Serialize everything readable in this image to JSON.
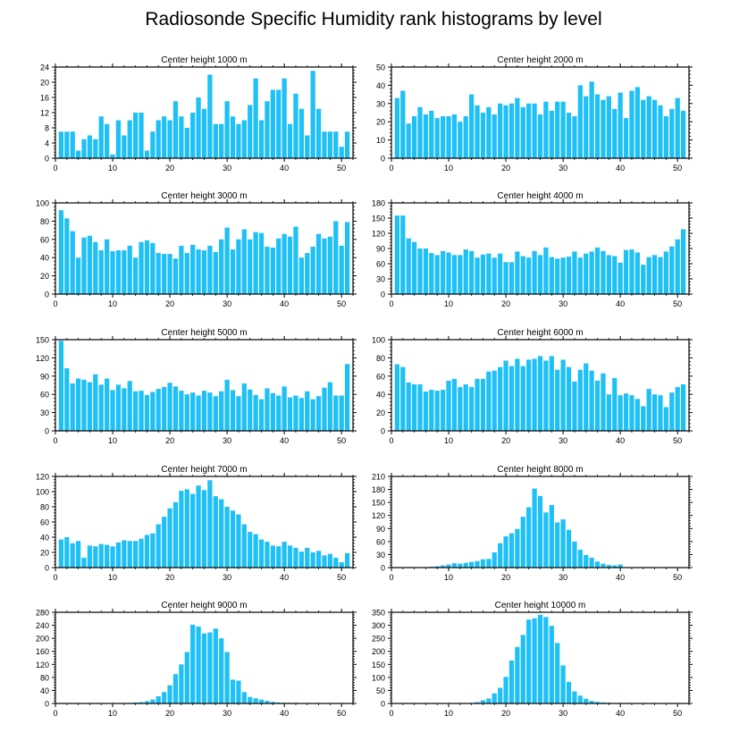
{
  "title": "Radiosonde Specific Humidity rank histograms by level",
  "colors": {
    "bar": "#1ec0f5",
    "axis": "#000000",
    "background": "#ffffff"
  },
  "chart_data": [
    {
      "type": "bar",
      "title": "Center height 1000 m",
      "xlabel": "",
      "ylabel": "",
      "x": [
        1,
        2,
        3,
        4,
        5,
        6,
        7,
        8,
        9,
        10,
        11,
        12,
        13,
        14,
        15,
        16,
        17,
        18,
        19,
        20,
        21,
        22,
        23,
        24,
        25,
        26,
        27,
        28,
        29,
        30,
        31,
        32,
        33,
        34,
        35,
        36,
        37,
        38,
        39,
        40,
        41,
        42,
        43,
        44,
        45,
        46,
        47,
        48,
        49,
        50,
        51
      ],
      "values": [
        7,
        7,
        7,
        2,
        5,
        6,
        5,
        11,
        9,
        1,
        10,
        6,
        10,
        12,
        12,
        2,
        7,
        10,
        11,
        10,
        15,
        11,
        8,
        12,
        16,
        13,
        22,
        9,
        9,
        15,
        11,
        9,
        10,
        14,
        21,
        10,
        15,
        18,
        18,
        21,
        9,
        17,
        13,
        6,
        23,
        13,
        7,
        7,
        7,
        3,
        7
      ],
      "xlim": [
        0,
        52
      ],
      "ylim": [
        0,
        24
      ],
      "xticks": [
        0,
        10,
        20,
        30,
        40,
        50
      ],
      "yticks": [
        0,
        4,
        8,
        12,
        16,
        20,
        24
      ]
    },
    {
      "type": "bar",
      "title": "Center height 2000 m",
      "xlabel": "",
      "ylabel": "",
      "x": [
        1,
        2,
        3,
        4,
        5,
        6,
        7,
        8,
        9,
        10,
        11,
        12,
        13,
        14,
        15,
        16,
        17,
        18,
        19,
        20,
        21,
        22,
        23,
        24,
        25,
        26,
        27,
        28,
        29,
        30,
        31,
        32,
        33,
        34,
        35,
        36,
        37,
        38,
        39,
        40,
        41,
        42,
        43,
        44,
        45,
        46,
        47,
        48,
        49,
        50,
        51
      ],
      "values": [
        33,
        37,
        19,
        23,
        28,
        24,
        26,
        22,
        23,
        23,
        24,
        20,
        23,
        35,
        29,
        25,
        28,
        24,
        30,
        29,
        30,
        33,
        28,
        30,
        30,
        24,
        31,
        26,
        31,
        31,
        25,
        23,
        40,
        34,
        42,
        35,
        32,
        34,
        27,
        36,
        22,
        37,
        39,
        32,
        34,
        32,
        29,
        23,
        27,
        33,
        26
      ],
      "xlim": [
        0,
        52
      ],
      "ylim": [
        0,
        50
      ],
      "xticks": [
        0,
        10,
        20,
        30,
        40,
        50
      ],
      "yticks": [
        0,
        10,
        20,
        30,
        40,
        50
      ]
    },
    {
      "type": "bar",
      "title": "Center height 3000 m",
      "xlabel": "",
      "ylabel": "",
      "x": [
        1,
        2,
        3,
        4,
        5,
        6,
        7,
        8,
        9,
        10,
        11,
        12,
        13,
        14,
        15,
        16,
        17,
        18,
        19,
        20,
        21,
        22,
        23,
        24,
        25,
        26,
        27,
        28,
        29,
        30,
        31,
        32,
        33,
        34,
        35,
        36,
        37,
        38,
        39,
        40,
        41,
        42,
        43,
        44,
        45,
        46,
        47,
        48,
        49,
        50,
        51
      ],
      "values": [
        92,
        83,
        69,
        40,
        62,
        64,
        57,
        48,
        60,
        47,
        48,
        48,
        53,
        40,
        57,
        59,
        56,
        45,
        44,
        44,
        39,
        53,
        45,
        54,
        49,
        48,
        53,
        46,
        60,
        73,
        49,
        60,
        71,
        60,
        68,
        67,
        52,
        51,
        61,
        66,
        63,
        74,
        40,
        45,
        52,
        66,
        61,
        63,
        80,
        53,
        79
      ],
      "xlim": [
        0,
        52
      ],
      "ylim": [
        0,
        100
      ],
      "xticks": [
        0,
        10,
        20,
        30,
        40,
        50
      ],
      "yticks": [
        0,
        20,
        40,
        60,
        80,
        100
      ]
    },
    {
      "type": "bar",
      "title": "Center height 4000 m",
      "xlabel": "",
      "ylabel": "",
      "x": [
        1,
        2,
        3,
        4,
        5,
        6,
        7,
        8,
        9,
        10,
        11,
        12,
        13,
        14,
        15,
        16,
        17,
        18,
        19,
        20,
        21,
        22,
        23,
        24,
        25,
        26,
        27,
        28,
        29,
        30,
        31,
        32,
        33,
        34,
        35,
        36,
        37,
        38,
        39,
        40,
        41,
        42,
        43,
        44,
        45,
        46,
        47,
        48,
        49,
        50,
        51
      ],
      "values": [
        155,
        155,
        110,
        103,
        90,
        90,
        81,
        77,
        85,
        82,
        77,
        77,
        88,
        85,
        72,
        78,
        80,
        72,
        80,
        63,
        63,
        84,
        75,
        72,
        85,
        77,
        92,
        73,
        70,
        72,
        74,
        84,
        72,
        80,
        84,
        92,
        85,
        77,
        75,
        62,
        87,
        88,
        82,
        58,
        73,
        77,
        73,
        84,
        94,
        108,
        128
      ],
      "xlim": [
        0,
        52
      ],
      "ylim": [
        0,
        180
      ],
      "xticks": [
        0,
        10,
        20,
        30,
        40,
        50
      ],
      "yticks": [
        0,
        30,
        60,
        90,
        120,
        150,
        180
      ]
    },
    {
      "type": "bar",
      "title": "Center height 5000 m",
      "xlabel": "",
      "ylabel": "",
      "x": [
        1,
        2,
        3,
        4,
        5,
        6,
        7,
        8,
        9,
        10,
        11,
        12,
        13,
        14,
        15,
        16,
        17,
        18,
        19,
        20,
        21,
        22,
        23,
        24,
        25,
        26,
        27,
        28,
        29,
        30,
        31,
        32,
        33,
        34,
        35,
        36,
        37,
        38,
        39,
        40,
        41,
        42,
        43,
        44,
        45,
        46,
        47,
        48,
        49,
        50,
        51
      ],
      "values": [
        148,
        103,
        78,
        86,
        84,
        80,
        93,
        76,
        86,
        67,
        76,
        70,
        82,
        65,
        66,
        59,
        64,
        69,
        72,
        79,
        73,
        66,
        60,
        63,
        58,
        66,
        63,
        57,
        65,
        84,
        67,
        57,
        78,
        68,
        59,
        52,
        70,
        62,
        58,
        73,
        55,
        58,
        54,
        65,
        52,
        57,
        71,
        80,
        58,
        58,
        110
      ],
      "xlim": [
        0,
        52
      ],
      "ylim": [
        0,
        150
      ],
      "xticks": [
        0,
        10,
        20,
        30,
        40,
        50
      ],
      "yticks": [
        0,
        30,
        60,
        90,
        120,
        150
      ]
    },
    {
      "type": "bar",
      "title": "Center height 6000 m",
      "xlabel": "",
      "ylabel": "",
      "x": [
        1,
        2,
        3,
        4,
        5,
        6,
        7,
        8,
        9,
        10,
        11,
        12,
        13,
        14,
        15,
        16,
        17,
        18,
        19,
        20,
        21,
        22,
        23,
        24,
        25,
        26,
        27,
        28,
        29,
        30,
        31,
        32,
        33,
        34,
        35,
        36,
        37,
        38,
        39,
        40,
        41,
        42,
        43,
        44,
        45,
        46,
        47,
        48,
        49,
        50,
        51
      ],
      "values": [
        73,
        70,
        53,
        51,
        51,
        43,
        45,
        44,
        45,
        55,
        57,
        48,
        51,
        48,
        57,
        57,
        65,
        66,
        70,
        77,
        71,
        79,
        71,
        78,
        79,
        82,
        77,
        82,
        67,
        78,
        70,
        54,
        67,
        74,
        66,
        55,
        63,
        40,
        58,
        39,
        41,
        39,
        35,
        27,
        46,
        40,
        39,
        26,
        42,
        48,
        51
      ],
      "xlim": [
        0,
        52
      ],
      "ylim": [
        0,
        100
      ],
      "xticks": [
        0,
        10,
        20,
        30,
        40,
        50
      ],
      "yticks": [
        0,
        20,
        40,
        60,
        80,
        100
      ]
    },
    {
      "type": "bar",
      "title": "Center height 7000 m",
      "xlabel": "",
      "ylabel": "",
      "x": [
        1,
        2,
        3,
        4,
        5,
        6,
        7,
        8,
        9,
        10,
        11,
        12,
        13,
        14,
        15,
        16,
        17,
        18,
        19,
        20,
        21,
        22,
        23,
        24,
        25,
        26,
        27,
        28,
        29,
        30,
        31,
        32,
        33,
        34,
        35,
        36,
        37,
        38,
        39,
        40,
        41,
        42,
        43,
        44,
        45,
        46,
        47,
        48,
        49,
        50,
        51
      ],
      "values": [
        37,
        40,
        32,
        35,
        13,
        29,
        28,
        31,
        30,
        28,
        33,
        36,
        35,
        35,
        38,
        43,
        45,
        57,
        67,
        78,
        86,
        101,
        103,
        97,
        108,
        102,
        115,
        94,
        90,
        80,
        75,
        70,
        57,
        47,
        44,
        37,
        34,
        29,
        28,
        34,
        29,
        26,
        21,
        26,
        20,
        22,
        16,
        18,
        13,
        7,
        19
      ],
      "xlim": [
        0,
        52
      ],
      "ylim": [
        0,
        120
      ],
      "xticks": [
        0,
        10,
        20,
        30,
        40,
        50
      ],
      "yticks": [
        0,
        20,
        40,
        60,
        80,
        100,
        120
      ]
    },
    {
      "type": "bar",
      "title": "Center height 8000 m",
      "xlabel": "",
      "ylabel": "",
      "x": [
        1,
        2,
        3,
        4,
        5,
        6,
        7,
        8,
        9,
        10,
        11,
        12,
        13,
        14,
        15,
        16,
        17,
        18,
        19,
        20,
        21,
        22,
        23,
        24,
        25,
        26,
        27,
        28,
        29,
        30,
        31,
        32,
        33,
        34,
        35,
        36,
        37,
        38,
        39,
        40,
        41,
        42,
        43,
        44,
        45,
        46,
        47,
        48,
        49,
        50,
        51
      ],
      "values": [
        0,
        0,
        0,
        0,
        0,
        1,
        2,
        3,
        5,
        7,
        10,
        9,
        11,
        13,
        15,
        19,
        20,
        35,
        56,
        72,
        79,
        89,
        117,
        139,
        182,
        165,
        127,
        144,
        104,
        111,
        87,
        60,
        41,
        29,
        23,
        14,
        9,
        6,
        5,
        7,
        0,
        0,
        0,
        0,
        0,
        0,
        0,
        0,
        0,
        0,
        1
      ],
      "xlim": [
        0,
        52
      ],
      "ylim": [
        0,
        210
      ],
      "xticks": [
        0,
        10,
        20,
        30,
        40,
        50
      ],
      "yticks": [
        0,
        30,
        60,
        90,
        120,
        150,
        180,
        210
      ]
    },
    {
      "type": "bar",
      "title": "Center height 9000 m",
      "xlabel": "",
      "ylabel": "",
      "x": [
        1,
        2,
        3,
        4,
        5,
        6,
        7,
        8,
        9,
        10,
        11,
        12,
        13,
        14,
        15,
        16,
        17,
        18,
        19,
        20,
        21,
        22,
        23,
        24,
        25,
        26,
        27,
        28,
        29,
        30,
        31,
        32,
        33,
        34,
        35,
        36,
        37,
        38,
        39,
        40,
        41,
        42,
        43,
        44,
        45,
        46,
        47,
        48,
        49,
        50,
        51
      ],
      "values": [
        0,
        0,
        0,
        0,
        0,
        0,
        0,
        0,
        0,
        1,
        1,
        1,
        2,
        3,
        4,
        7,
        12,
        22,
        35,
        56,
        90,
        120,
        158,
        242,
        236,
        215,
        218,
        230,
        200,
        158,
        73,
        70,
        35,
        20,
        16,
        12,
        8,
        5,
        3,
        2,
        2,
        2,
        1,
        0,
        0,
        0,
        0,
        0,
        0,
        0,
        0
      ],
      "xlim": [
        0,
        52
      ],
      "ylim": [
        0,
        280
      ],
      "xticks": [
        0,
        10,
        20,
        30,
        40,
        50
      ],
      "yticks": [
        0,
        40,
        80,
        120,
        160,
        200,
        240,
        280
      ]
    },
    {
      "type": "bar",
      "title": "Center height 10000 m",
      "xlabel": "",
      "ylabel": "",
      "x": [
        1,
        2,
        3,
        4,
        5,
        6,
        7,
        8,
        9,
        10,
        11,
        12,
        13,
        14,
        15,
        16,
        17,
        18,
        19,
        20,
        21,
        22,
        23,
        24,
        25,
        26,
        27,
        28,
        29,
        30,
        31,
        32,
        33,
        34,
        35,
        36,
        37,
        38,
        39,
        40,
        41,
        42,
        43,
        44,
        45,
        46,
        47,
        48,
        49,
        50,
        51
      ],
      "values": [
        0,
        0,
        0,
        0,
        0,
        0,
        0,
        0,
        0,
        0,
        0,
        0,
        1,
        2,
        5,
        12,
        19,
        39,
        60,
        102,
        165,
        217,
        263,
        322,
        327,
        340,
        332,
        298,
        232,
        146,
        83,
        46,
        30,
        18,
        10,
        6,
        4,
        3,
        2,
        1,
        1,
        0,
        0,
        0,
        0,
        0,
        0,
        0,
        0,
        0,
        0
      ],
      "xlim": [
        0,
        52
      ],
      "ylim": [
        0,
        350
      ],
      "xticks": [
        0,
        10,
        20,
        30,
        40,
        50
      ],
      "yticks": [
        0,
        50,
        100,
        150,
        200,
        250,
        300,
        350
      ]
    }
  ]
}
